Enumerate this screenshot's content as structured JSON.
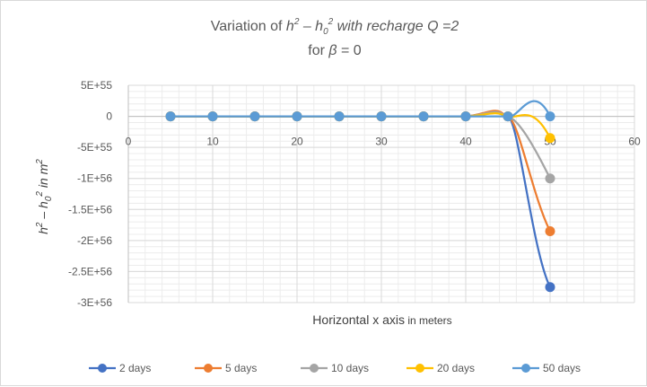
{
  "chart_data": {
    "type": "line",
    "title": {
      "line1_prefix": "Variation of ",
      "line1_h": "h",
      "line1_sup1": "2",
      "line1_minus": " – h",
      "line1_sub": "0",
      "line1_sup2": "2",
      "line1_suffix": " with recharge Q =2",
      "line2_prefix": "for ",
      "line2_beta": "β",
      "line2_suffix": " = 0"
    },
    "xlabel": {
      "main": "Horizontal x axis",
      "unit": " in meters"
    },
    "ylabel": {
      "h": "h",
      "sup1": "2",
      "minus": " – h",
      "sub": "0",
      "sup2": "2",
      "rest": " in m",
      "sup3": "2"
    },
    "xlim": [
      0,
      60
    ],
    "ylim": [
      -3e+56,
      5e+55
    ],
    "x_ticks": [
      0,
      10,
      20,
      30,
      40,
      50,
      60
    ],
    "x_tick_labels": [
      "0",
      "10",
      "20",
      "30",
      "40",
      "50",
      "60"
    ],
    "y_ticks": [
      5e+55,
      0,
      -5e+55,
      -1e+56,
      -1.5e+56,
      -2e+56,
      -2.5e+56,
      -3e+56
    ],
    "y_tick_labels": [
      "5E+55",
      "0",
      "-5E+55",
      "-1E+56",
      "-1.5E+56",
      "-2E+56",
      "-2.5E+56",
      "-3E+56"
    ],
    "x": [
      5,
      10,
      15,
      20,
      25,
      30,
      35,
      40,
      45,
      50
    ],
    "series": [
      {
        "name": "2 days",
        "color": "#4472c4",
        "bump": 8e+54,
        "values": [
          0,
          0,
          0,
          0,
          0,
          0,
          0,
          0,
          0,
          -2.75e+56
        ]
      },
      {
        "name": "5 days",
        "color": "#ed7d31",
        "bump": 9e+54,
        "values": [
          0,
          0,
          0,
          0,
          0,
          0,
          0,
          0,
          0,
          -1.85e+56
        ]
      },
      {
        "name": "10 days",
        "color": "#a5a5a5",
        "bump": 7e+54,
        "values": [
          0,
          0,
          0,
          0,
          0,
          0,
          0,
          0,
          0,
          -1e+56
        ]
      },
      {
        "name": "20 days",
        "color": "#ffc000",
        "bump": 5e+54,
        "values": [
          0,
          0,
          0,
          0,
          0,
          0,
          0,
          0,
          0,
          -3.5e+55
        ]
      },
      {
        "name": "50 days",
        "color": "#5b9bd5",
        "bump": 0,
        "values": [
          0,
          0,
          0,
          0,
          0,
          0,
          0,
          0,
          0,
          0
        ]
      }
    ],
    "grid": true,
    "minor_grid": true,
    "legend_position": "bottom",
    "smooth": true
  }
}
